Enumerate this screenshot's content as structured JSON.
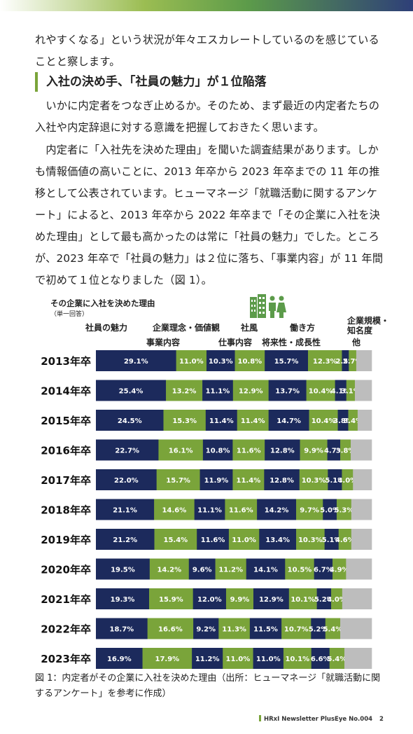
{
  "body": {
    "para1": "れやすくなる」という状況が年々エスカレートしているのを感じていることと察します。",
    "heading": "入社の決め手、「社員の魅力」が１位陥落",
    "para2": "　いかに内定者をつなぎ止めるか。そのため、まず最近の内定者たちの入社や内定辞退に対する意識を把握しておきたく思います。",
    "para3": "　内定者に「入社先を決めた理由」を聞いた調査結果があります。しかも情報価値の高いことに、2013 年卒から 2023 年卒までの 11 年の推移として公表されています。ヒューマネージ「就職活動に関するアンケート」によると、2013 年卒から 2022 年卒まで「その企業に入社を決めた理由」として最も高かったのは常に「社員の魅力」でした。ところが、2023 年卒で「社員の魅力」は２位に落ち、「事業内容」が 11 年間で初めて１位となりました（図 1）。"
  },
  "icon": "office-building-and-people-icon",
  "caption": "図 1：内定者がその企業に入社を決めた理由（出所：ヒューマネージ「就職活動に関するアンケート」を参考に作成）",
  "footer": {
    "text": "HRxI Newsletter PlusEye  No.004",
    "page": "2"
  },
  "colors": {
    "navy": "#1c2a5c",
    "green": "#7aa43a",
    "gray": "#bdbdbd",
    "accent": "#5c9b4a"
  },
  "chart_data": {
    "type": "bar",
    "stacked": true,
    "orientation": "horizontal",
    "title": "その企業に入社を決めた理由",
    "subtitle": "（単一回答）",
    "value_unit": "%",
    "categories": [
      "2013年卒",
      "2014年卒",
      "2015年卒",
      "2016年卒",
      "2017年卒",
      "2018年卒",
      "2019年卒",
      "2020年卒",
      "2021年卒",
      "2022年卒",
      "2023年卒"
    ],
    "series": [
      {
        "name": "社員の魅力",
        "color": "#1c2a5c",
        "values": [
          29.1,
          25.4,
          24.5,
          22.7,
          22.0,
          21.1,
          21.2,
          19.5,
          19.3,
          18.7,
          16.9
        ]
      },
      {
        "name": "事業内容",
        "color": "#7aa43a",
        "values": [
          11.0,
          13.2,
          15.3,
          16.1,
          15.7,
          14.6,
          15.4,
          14.2,
          15.9,
          16.6,
          17.9
        ]
      },
      {
        "name": "企業理念・価値観",
        "color": "#1c2a5c",
        "values": [
          10.3,
          11.1,
          11.4,
          10.8,
          11.9,
          11.1,
          11.6,
          9.6,
          12.0,
          9.2,
          11.2
        ]
      },
      {
        "name": "仕事内容",
        "color": "#7aa43a",
        "values": [
          10.8,
          12.9,
          11.4,
          11.6,
          11.4,
          11.6,
          11.0,
          11.2,
          9.9,
          11.3,
          11.0
        ]
      },
      {
        "name": "社風",
        "color": "#1c2a5c",
        "values": [
          15.7,
          13.7,
          14.7,
          12.8,
          12.8,
          14.2,
          13.4,
          14.1,
          12.9,
          11.5,
          11.0
        ]
      },
      {
        "name": "将来性・成長性",
        "color": "#7aa43a",
        "values": [
          12.3,
          10.4,
          10.4,
          9.9,
          10.3,
          9.7,
          10.3,
          10.5,
          10.1,
          10.7,
          10.1
        ]
      },
      {
        "name": "働き方",
        "color": "#1c2a5c",
        "values": [
          2.5,
          4.1,
          3.8,
          4.7,
          5.1,
          5.0,
          5.1,
          6.7,
          5.2,
          5.2,
          6.6
        ]
      },
      {
        "name": "企業規模・知名度",
        "color": "#7aa43a",
        "values": [
          2.7,
          3.1,
          3.4,
          3.8,
          4.0,
          5.3,
          4.6,
          4.9,
          4.0,
          5.4,
          5.4
        ]
      },
      {
        "name": "他",
        "color": "#bdbdbd",
        "values": [
          5.6,
          6.1,
          5.1,
          7.6,
          6.8,
          7.4,
          7.4,
          9.3,
          10.7,
          11.4,
          9.9
        ]
      }
    ],
    "labeled_series": 8,
    "legend_labels": [
      "社員の魅力",
      "企業理念・価値観",
      "社風",
      "働き方",
      "企業規模・",
      "知名度",
      "事業内容",
      "仕事内容",
      "将来性・成長性",
      "他"
    ],
    "xlim": [
      0,
      100
    ],
    "legend": "top"
  }
}
